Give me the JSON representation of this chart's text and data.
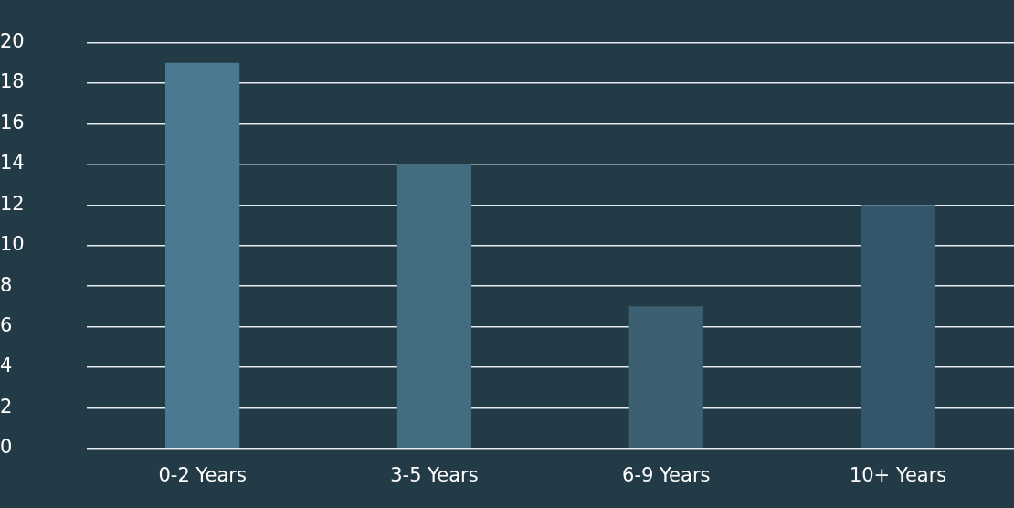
{
  "chart_data": {
    "type": "bar",
    "categories": [
      "0-2 Years",
      "3-5 Years",
      "6-9 Years",
      "10+ Years"
    ],
    "values": [
      19,
      14,
      7,
      12
    ],
    "colors": [
      "#4a7a8f",
      "#426c7f",
      "#3c6072",
      "#34566a"
    ],
    "ylim": [
      0,
      20
    ],
    "yticks": [
      0,
      2,
      4,
      6,
      8,
      10,
      12,
      14,
      16,
      18,
      20
    ],
    "grid": "y"
  }
}
